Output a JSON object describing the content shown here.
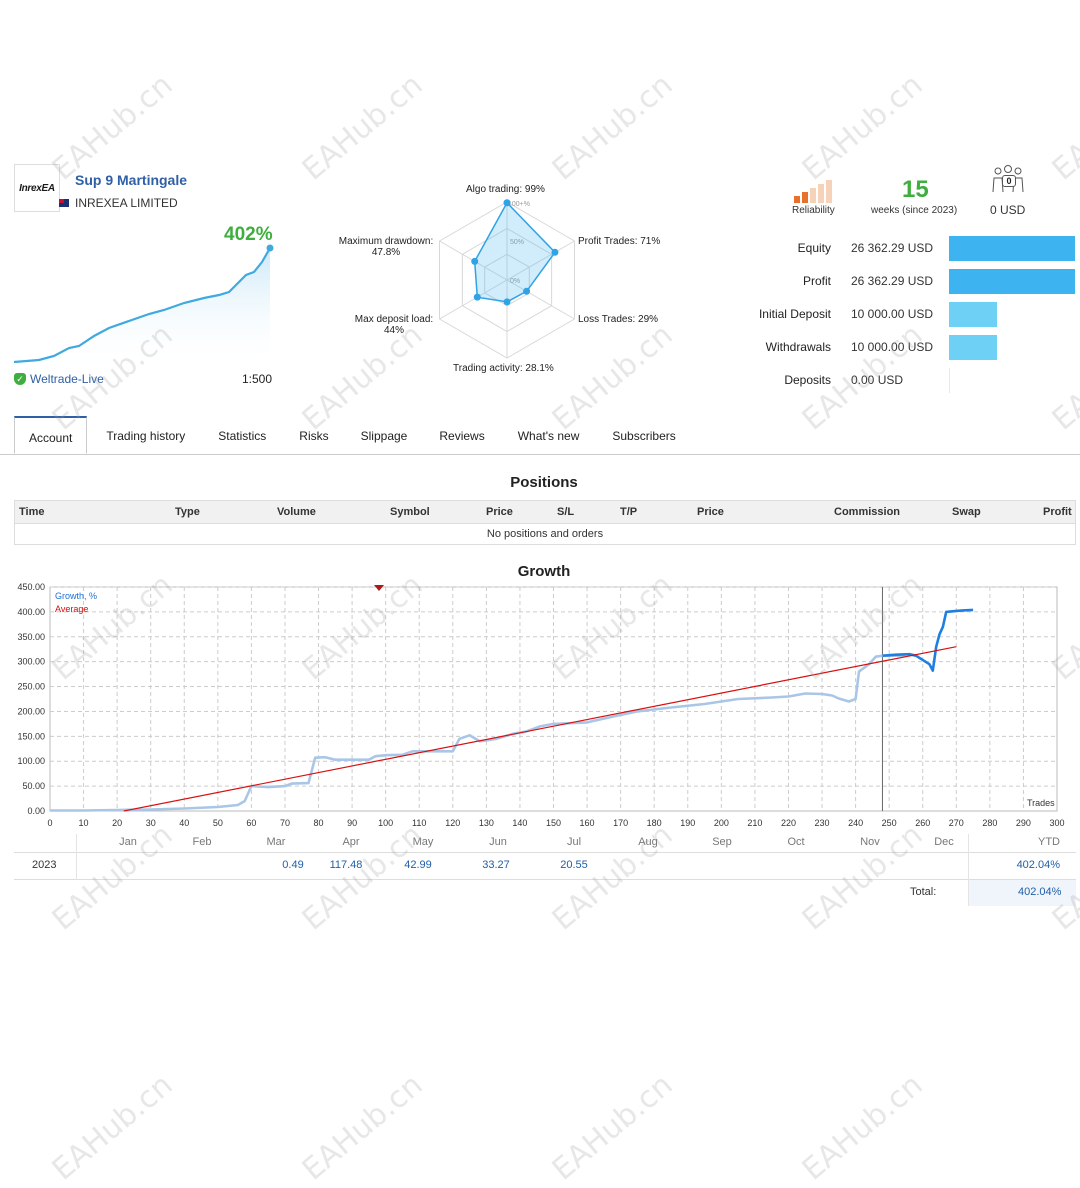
{
  "signal": {
    "logo": "InrexEA",
    "name": "Sup 9 Martingale",
    "company": "INREXEA LIMITED",
    "growth": "402%",
    "broker": "Weltrade-Live",
    "leverage": "1:500"
  },
  "radar": {
    "algo": "Algo trading: 99%",
    "profit_trades": "Profit Trades: 71%",
    "loss_trades": "Loss Trades: 29%",
    "activity": "Trading activity: 28.1%",
    "deposit_load_1": "Max deposit load:",
    "deposit_load_2": "44%",
    "drawdown_1": "Maximum drawdown:",
    "drawdown_2": "47.8%",
    "ring_100": "100+%",
    "ring_50": "50%",
    "ring_0": "0%",
    "values": [
      0.99,
      0.71,
      0.29,
      0.281,
      0.44,
      0.478
    ]
  },
  "summary": {
    "reliability_label": "Reliability",
    "weeks_num": "15",
    "weeks_label": "weeks (since 2023)",
    "subscribers_count": "0",
    "subscribers_value": "0 USD",
    "stats": [
      {
        "label": "Equity",
        "value": "26 362.29 USD",
        "fraction": 1.0
      },
      {
        "label": "Profit",
        "value": "26 362.29 USD",
        "fraction": 1.0
      },
      {
        "label": "Initial Deposit",
        "value": "10 000.00 USD",
        "fraction": 0.38
      },
      {
        "label": "Withdrawals",
        "value": "10 000.00 USD",
        "fraction": 0.38
      },
      {
        "label": "Deposits",
        "value": "0.00 USD",
        "fraction": 0.0
      }
    ]
  },
  "tabs": [
    "Account",
    "Trading history",
    "Statistics",
    "Risks",
    "Slippage",
    "Reviews",
    "What's new",
    "Subscribers"
  ],
  "positions": {
    "title": "Positions",
    "headers": [
      "Time",
      "Type",
      "Volume",
      "Symbol",
      "Price",
      "S/L",
      "T/P",
      "Price",
      "Commission",
      "Swap",
      "Profit"
    ],
    "empty": "No positions and orders"
  },
  "growth": {
    "title": "Growth",
    "legend_growth": "Growth, %",
    "legend_average": "Average",
    "x_label": "Trades",
    "months": [
      "Jan",
      "Feb",
      "Mar",
      "Apr",
      "May",
      "Jun",
      "Jul",
      "Aug",
      "Sep",
      "Oct",
      "Nov",
      "Dec",
      "YTD"
    ],
    "year": "2023",
    "monthly": [
      "",
      "",
      "0.49",
      "117.48",
      "42.99",
      "33.27",
      "20.55",
      "",
      "",
      "",
      "",
      "",
      "402.04%"
    ],
    "total_label": "Total:",
    "total_value": "402.04%"
  },
  "chart_data": {
    "type": "line",
    "xlabel": "Trades",
    "ylabel": "",
    "xlim": [
      0,
      300
    ],
    "ylim": [
      0,
      450
    ],
    "xticks": [
      0,
      10,
      20,
      30,
      40,
      50,
      60,
      70,
      80,
      90,
      100,
      110,
      120,
      130,
      140,
      150,
      160,
      170,
      180,
      190,
      200,
      210,
      220,
      230,
      240,
      250,
      260,
      270,
      280,
      290,
      300
    ],
    "yticks": [
      "0.00",
      "50.00",
      "100.00",
      "150.00",
      "200.00",
      "250.00",
      "300.00",
      "350.00",
      "400.00",
      "450.00"
    ],
    "series": [
      {
        "name": "Growth, %",
        "points": [
          [
            0,
            1
          ],
          [
            10,
            1
          ],
          [
            20,
            2
          ],
          [
            30,
            3
          ],
          [
            40,
            5
          ],
          [
            50,
            8
          ],
          [
            56,
            12
          ],
          [
            58,
            20
          ],
          [
            60,
            50
          ],
          [
            65,
            48
          ],
          [
            70,
            50
          ],
          [
            72,
            55
          ],
          [
            77,
            56
          ],
          [
            79,
            107
          ],
          [
            82,
            108
          ],
          [
            85,
            103
          ],
          [
            95,
            103
          ],
          [
            97,
            110
          ],
          [
            100,
            112
          ],
          [
            105,
            113
          ],
          [
            108,
            120
          ],
          [
            120,
            120
          ],
          [
            122,
            145
          ],
          [
            125,
            152
          ],
          [
            128,
            140
          ],
          [
            133,
            145
          ],
          [
            138,
            155
          ],
          [
            142,
            160
          ],
          [
            146,
            170
          ],
          [
            150,
            175
          ],
          [
            160,
            178
          ],
          [
            168,
            190
          ],
          [
            175,
            200
          ],
          [
            185,
            208
          ],
          [
            195,
            215
          ],
          [
            205,
            225
          ],
          [
            215,
            228
          ],
          [
            220,
            230
          ],
          [
            225,
            236
          ],
          [
            230,
            235
          ],
          [
            233,
            232
          ],
          [
            235,
            226
          ],
          [
            238,
            220
          ],
          [
            240,
            225
          ],
          [
            241,
            280
          ],
          [
            244,
            295
          ],
          [
            246,
            310
          ],
          [
            248,
            312
          ],
          [
            255,
            312
          ]
        ]
      },
      {
        "name": "Growth, % (current)",
        "points": [
          [
            248,
            312
          ],
          [
            252,
            314
          ],
          [
            256,
            315
          ],
          [
            258,
            312
          ],
          [
            262,
            295
          ],
          [
            263,
            282
          ],
          [
            264,
            330
          ],
          [
            265,
            355
          ],
          [
            266,
            370
          ],
          [
            267,
            400
          ],
          [
            270,
            402
          ],
          [
            272,
            403
          ],
          [
            275,
            404
          ]
        ]
      },
      {
        "name": "Average",
        "points": [
          [
            22,
            0
          ],
          [
            270,
            330
          ]
        ]
      }
    ]
  }
}
